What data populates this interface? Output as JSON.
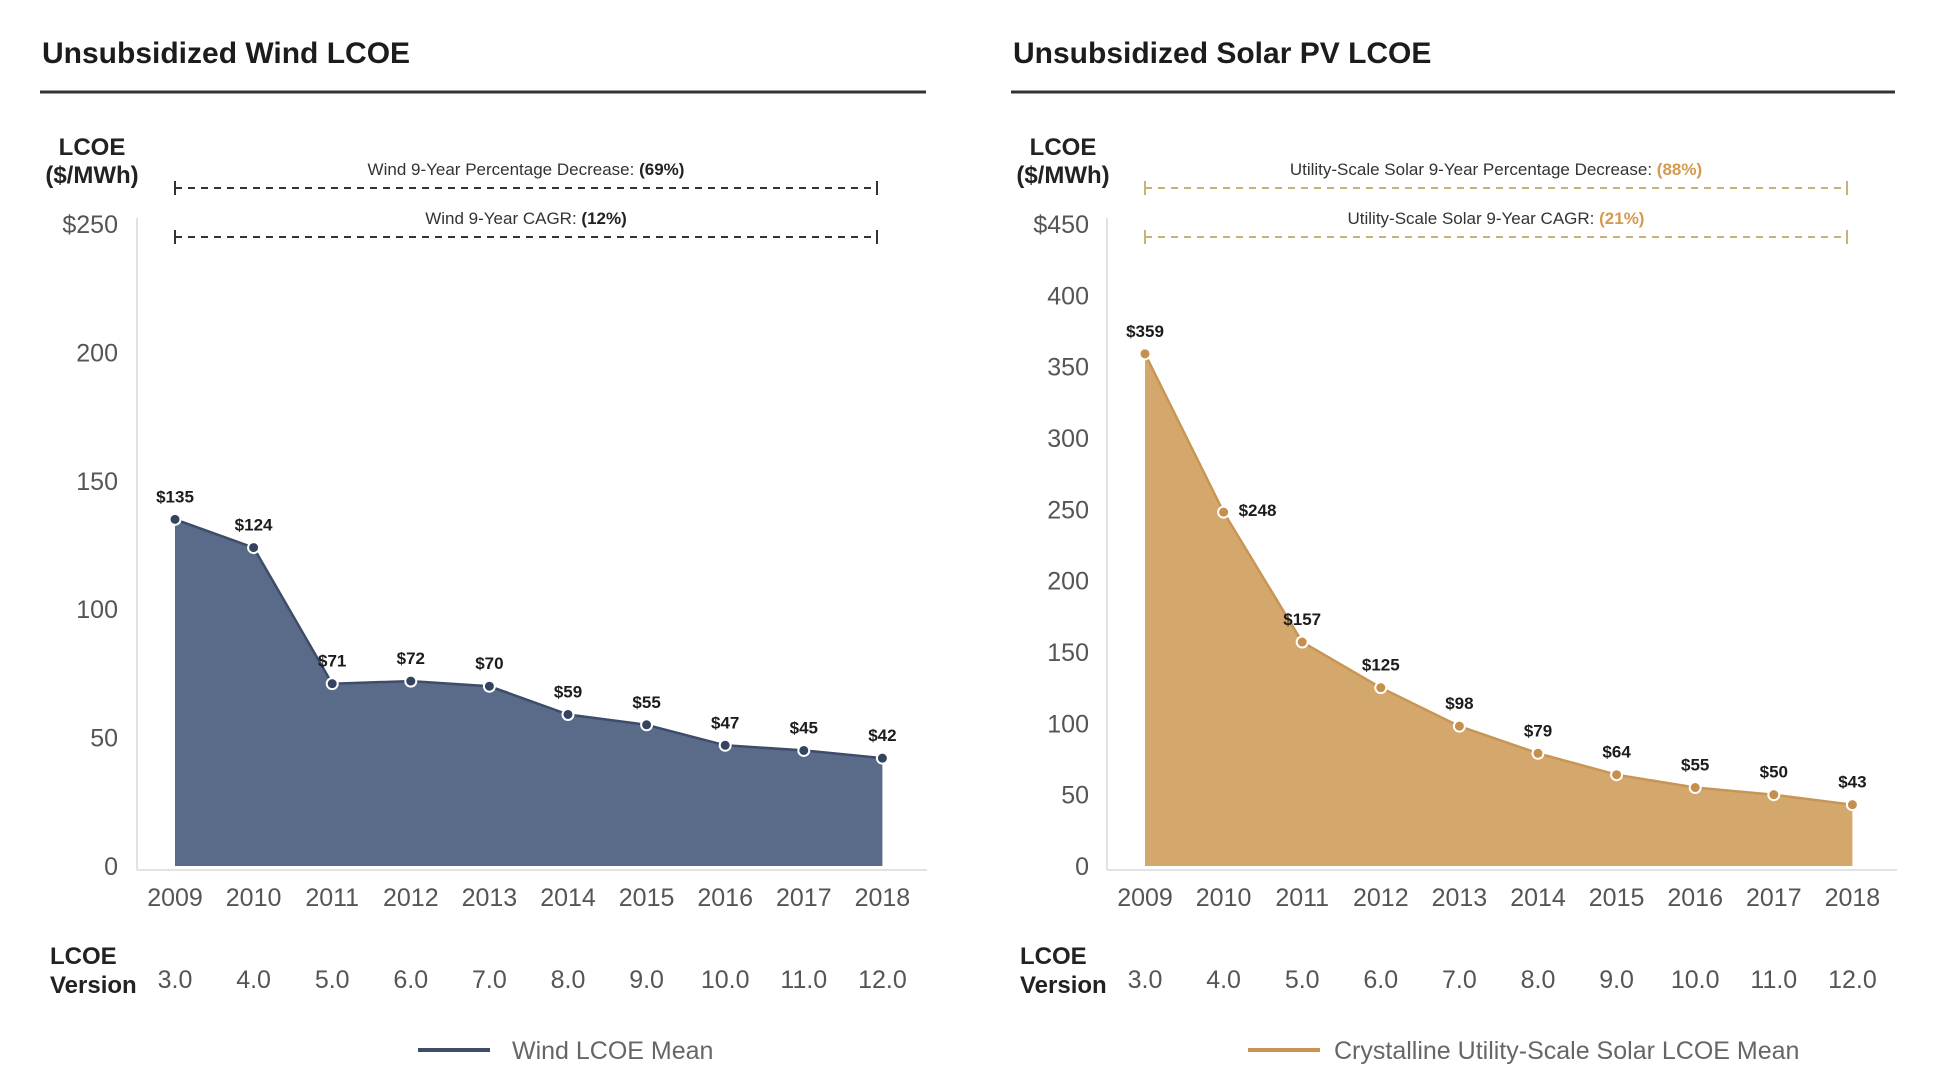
{
  "chart_data": [
    {
      "type": "area",
      "title": "Unsubsidized Wind LCOE",
      "ylabel_lines": [
        "LCOE",
        "($/MWh)"
      ],
      "ylim": [
        0,
        250
      ],
      "y_ticks": [
        {
          "value": 250,
          "label": "$250"
        },
        {
          "value": 200,
          "label": "200"
        },
        {
          "value": 150,
          "label": "150"
        },
        {
          "value": 100,
          "label": "100"
        },
        {
          "value": 50,
          "label": "50"
        },
        {
          "value": 0,
          "label": "0"
        }
      ],
      "categories": [
        "2009",
        "2010",
        "2011",
        "2012",
        "2013",
        "2014",
        "2015",
        "2016",
        "2017",
        "2018"
      ],
      "version_label_lines": [
        "LCOE",
        "Version"
      ],
      "versions": [
        "3.0",
        "4.0",
        "5.0",
        "6.0",
        "7.0",
        "8.0",
        "9.0",
        "10.0",
        "11.0",
        "12.0"
      ],
      "series": [
        {
          "name": "Wind LCOE Mean",
          "values": [
            135,
            124,
            71,
            72,
            70,
            59,
            55,
            47,
            45,
            42
          ],
          "labels": [
            "$135",
            "$124",
            "$71",
            "$72",
            "$70",
            "$59",
            "$55",
            "$47",
            "$45",
            "$42"
          ]
        }
      ],
      "annotations": [
        {
          "text": "Wind 9-Year Percentage Decrease: ",
          "value": "(69%)"
        },
        {
          "text": "Wind 9-Year CAGR: ",
          "value": "(12%)"
        }
      ],
      "colors": {
        "fill": "#5a6b8a",
        "line": "#3d4c69",
        "dot": "#34435f",
        "annotation_value": "#222222",
        "bracket": "#333333"
      },
      "legend": {
        "placement": "bottom-center"
      },
      "grid": false
    },
    {
      "type": "area",
      "title": "Unsubsidized Solar PV LCOE",
      "ylabel_lines": [
        "LCOE",
        "($/MWh)"
      ],
      "ylim": [
        0,
        450
      ],
      "y_ticks": [
        {
          "value": 450,
          "label": "$450"
        },
        {
          "value": 400,
          "label": "400"
        },
        {
          "value": 350,
          "label": "350"
        },
        {
          "value": 300,
          "label": "300"
        },
        {
          "value": 250,
          "label": "250"
        },
        {
          "value": 200,
          "label": "200"
        },
        {
          "value": 150,
          "label": "150"
        },
        {
          "value": 100,
          "label": "100"
        },
        {
          "value": 50,
          "label": "50"
        },
        {
          "value": 0,
          "label": "0"
        }
      ],
      "categories": [
        "2009",
        "2010",
        "2011",
        "2012",
        "2013",
        "2014",
        "2015",
        "2016",
        "2017",
        "2018"
      ],
      "version_label_lines": [
        "LCOE",
        "Version"
      ],
      "versions": [
        "3.0",
        "4.0",
        "5.0",
        "6.0",
        "7.0",
        "8.0",
        "9.0",
        "10.0",
        "11.0",
        "12.0"
      ],
      "series": [
        {
          "name": "Crystalline Utility-Scale Solar LCOE Mean",
          "values": [
            359,
            248,
            157,
            125,
            98,
            79,
            64,
            55,
            50,
            43
          ],
          "labels": [
            "$359",
            "$248",
            "$157",
            "$125",
            "$98",
            "$79",
            "$64",
            "$55",
            "$50",
            "$43"
          ]
        }
      ],
      "annotations": [
        {
          "text": "Utility-Scale Solar 9-Year Percentage Decrease: ",
          "value": "(88%)"
        },
        {
          "text": "Utility-Scale Solar 9-Year CAGR: ",
          "value": "(21%)"
        }
      ],
      "colors": {
        "fill": "#d4a86d",
        "line": "#c89555",
        "dot": "#c68f4d",
        "annotation_value": "#d49a4e",
        "bracket": "#c9b277"
      },
      "legend": {
        "placement": "bottom-center"
      },
      "grid": false
    }
  ]
}
